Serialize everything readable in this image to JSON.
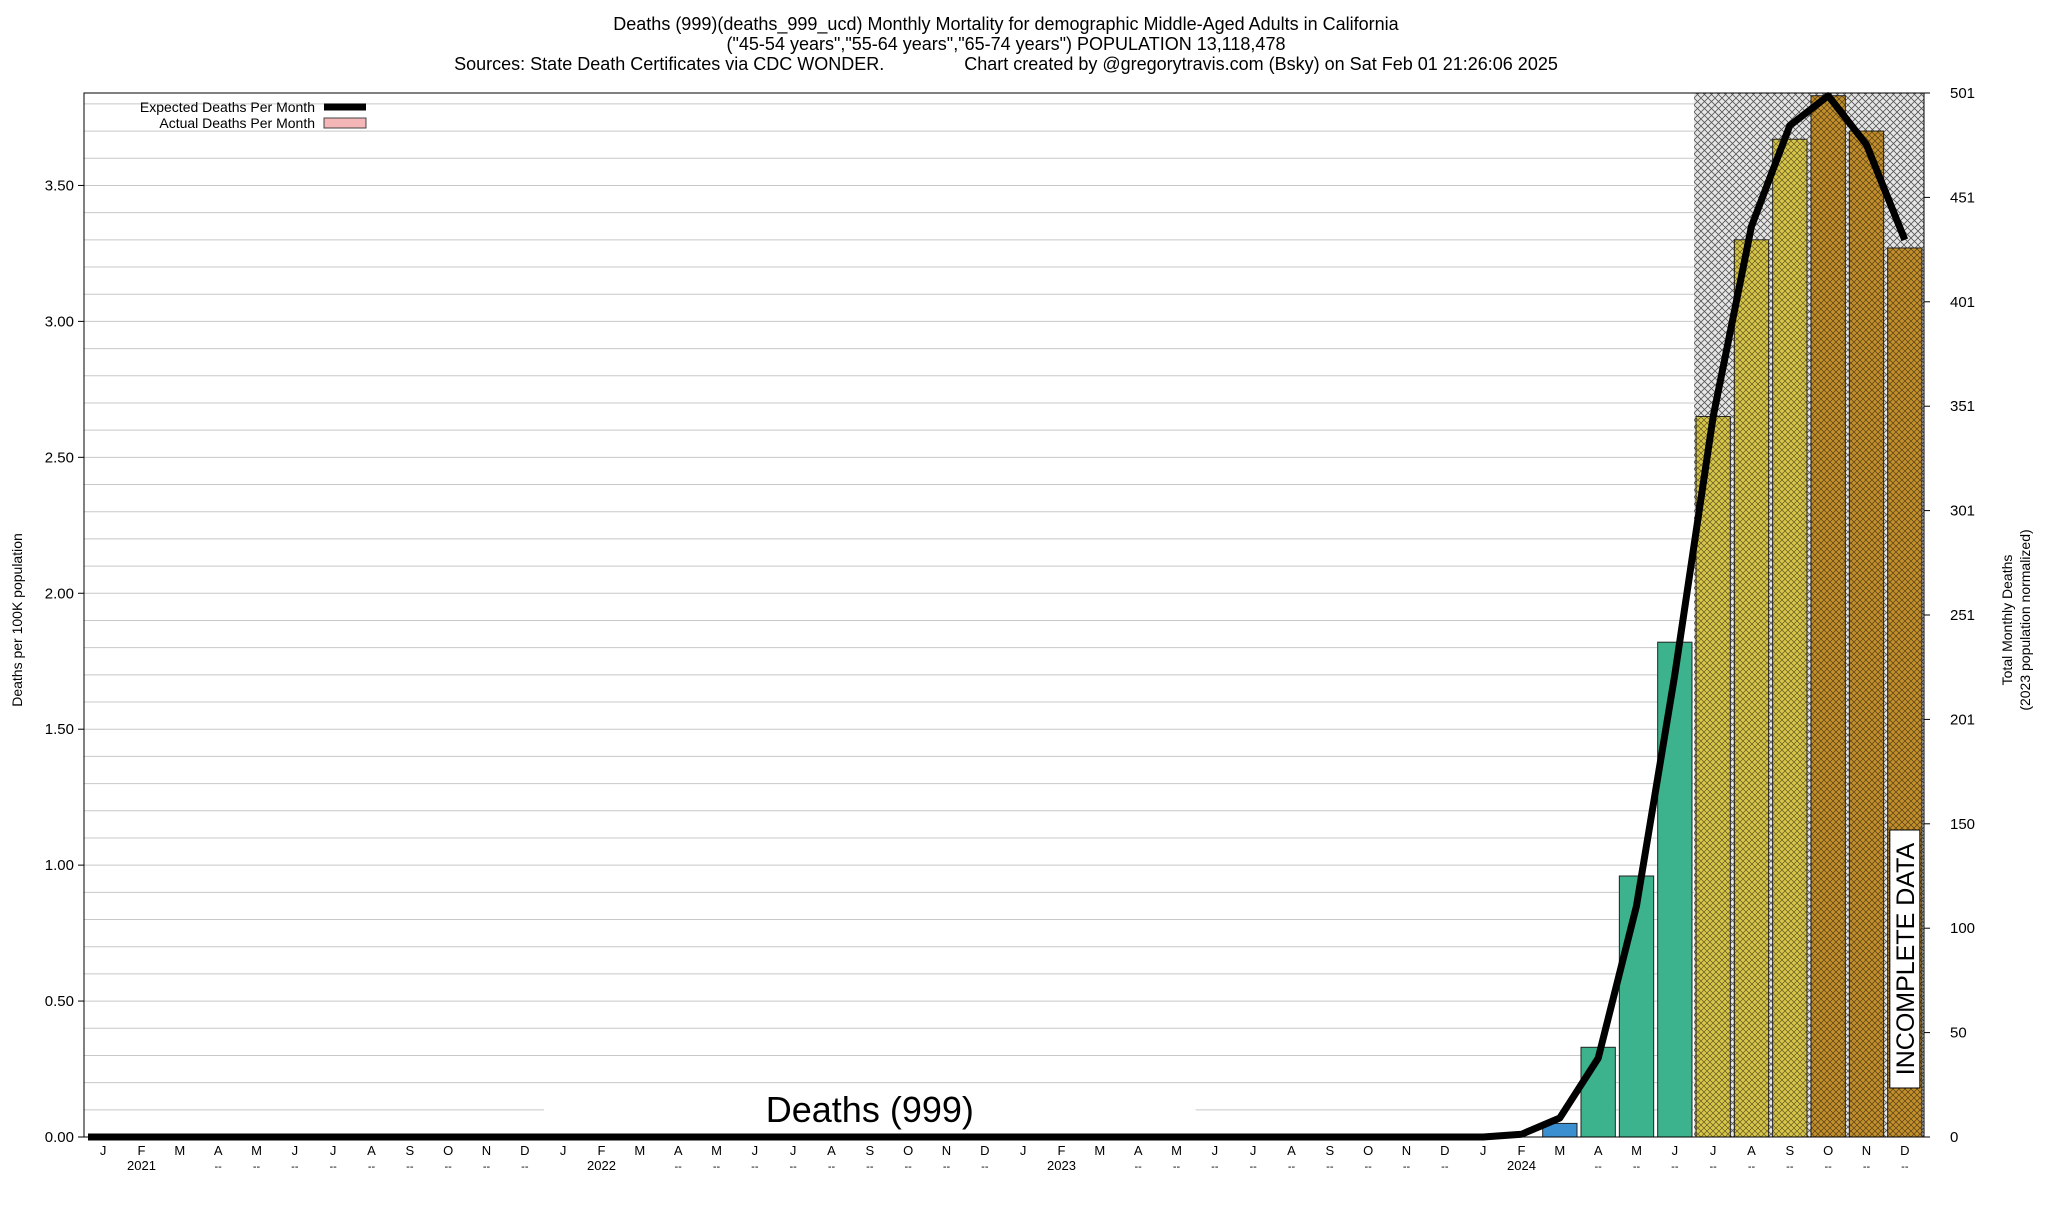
{
  "chart_data": {
    "type": "bar",
    "title_lines": [
      "Deaths (999)(deaths_999_ucd) Monthly Mortality for demographic Middle-Aged Adults in California",
      "(\"45-54 years\",\"55-64 years\",\"65-74 years\") POPULATION 13,118,478",
      "Sources: State Death Certificates via CDC WONDER.                Chart created by @gregorytravis.com (Bsky) on Sat Feb 01 21:26:06 2025"
    ],
    "ylabel": "Deaths per 100K population",
    "y2label_lines": [
      "Total Monthly Deaths",
      "(2023 population normalized)"
    ],
    "ylim": [
      0,
      3.84
    ],
    "y_ticks": [
      0,
      0.5,
      1.0,
      1.5,
      2.0,
      2.5,
      3.0,
      3.5
    ],
    "y_tick_labels": [
      "0.00",
      "0.50",
      "1.00",
      "1.50",
      "2.00",
      "2.50",
      "3.00",
      "3.50"
    ],
    "y2_ticks": [
      0,
      50,
      100,
      150,
      201,
      251,
      301,
      351,
      401,
      451,
      501
    ],
    "y2_tick_labels": [
      "0",
      "50",
      "100",
      "150",
      "201",
      "251",
      "301",
      "351",
      "401",
      "451",
      "501"
    ],
    "grid": true,
    "legend_position": "top-left",
    "legend": [
      {
        "label": "Expected Deaths Per Month",
        "kind": "line",
        "color": "#000000"
      },
      {
        "label": "Actual Deaths Per Month",
        "kind": "box",
        "color": "#f4b6b6"
      }
    ],
    "watermark": "Deaths (999)",
    "incomplete_label": "INCOMPLETE DATA",
    "incomplete_from_index": 42,
    "month_labels": [
      "J",
      "F",
      "M",
      "A",
      "M",
      "J",
      "J",
      "A",
      "S",
      "O",
      "N",
      "D",
      "J",
      "F",
      "M",
      "A",
      "M",
      "J",
      "J",
      "A",
      "S",
      "O",
      "N",
      "D",
      "J",
      "F",
      "M",
      "A",
      "M",
      "J",
      "J",
      "A",
      "S",
      "O",
      "N",
      "D",
      "J",
      "F",
      "M",
      "A",
      "M",
      "J",
      "J",
      "A",
      "S",
      "O",
      "N",
      "D"
    ],
    "year_labels": [
      {
        "index": 1,
        "text": "2021"
      },
      {
        "index": 13,
        "text": "2022"
      },
      {
        "index": 25,
        "text": "2023"
      },
      {
        "index": 37,
        "text": "2024"
      }
    ],
    "dash_marker": "--",
    "dash_indices": [
      3,
      4,
      5,
      6,
      7,
      8,
      9,
      10,
      11,
      15,
      16,
      17,
      18,
      19,
      20,
      21,
      22,
      23,
      27,
      28,
      29,
      30,
      31,
      32,
      33,
      34,
      35,
      39,
      40,
      41,
      42,
      43,
      44,
      45,
      46,
      47
    ],
    "values": [
      0,
      0,
      0,
      0,
      0,
      0,
      0,
      0,
      0,
      0,
      0,
      0,
      0,
      0,
      0,
      0,
      0,
      0,
      0,
      0,
      0,
      0,
      0,
      0,
      0,
      0,
      0,
      0,
      0,
      0,
      0,
      0,
      0,
      0,
      0,
      0,
      0,
      0,
      0.05,
      0.33,
      0.96,
      1.82,
      2.65,
      3.3,
      3.67,
      3.83,
      3.7,
      3.27
    ],
    "expected": [
      0,
      0,
      0,
      0,
      0,
      0,
      0,
      0,
      0,
      0,
      0,
      0,
      0,
      0,
      0,
      0,
      0,
      0,
      0,
      0,
      0,
      0,
      0,
      0,
      0,
      0,
      0,
      0,
      0,
      0,
      0,
      0,
      0,
      0,
      0,
      0,
      0,
      0.01,
      0.07,
      0.29,
      0.85,
      1.7,
      2.65,
      3.35,
      3.72,
      3.83,
      3.65,
      3.3
    ],
    "bar_colors": [
      "#3a8fd0",
      "#3cb38c",
      "#3cb38c",
      "#3cb38c",
      "#d8c64a",
      "#d8c64a",
      "#d8c64a",
      "#c28f2c",
      "#c28f2c",
      "#c28f2c"
    ],
    "bar_color_start_index": 38
  }
}
